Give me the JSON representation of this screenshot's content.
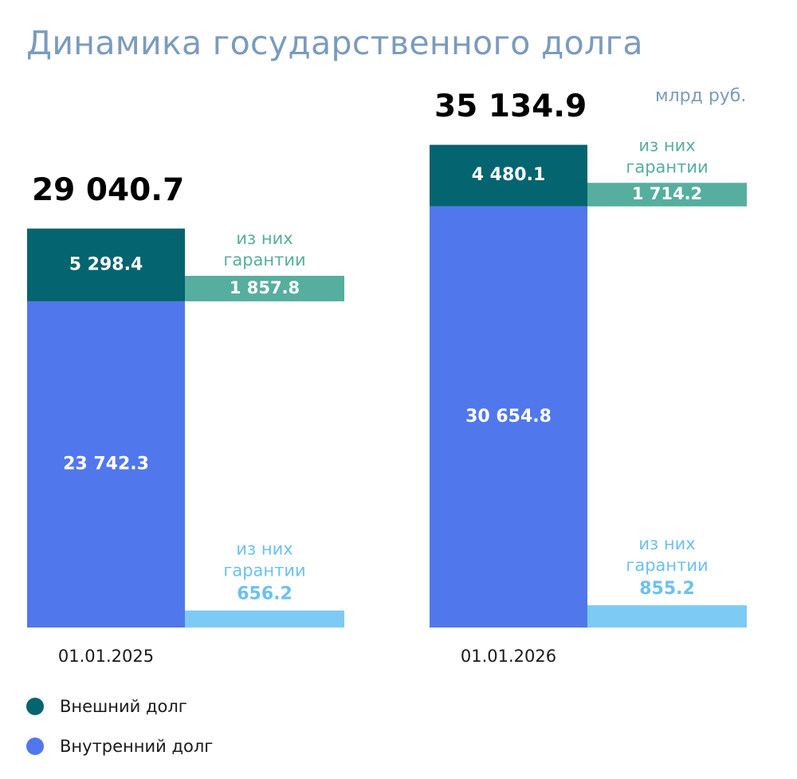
{
  "title": "Динамика государственного долга",
  "unit": "млрд руб.",
  "colors": {
    "external": "#04646f",
    "domestic": "#5177ec",
    "external_guarantee": "#56ae9e",
    "domestic_guarantee": "#7dcbf5",
    "external_guarantee_text": "#56ae9e",
    "domestic_guarantee_text": "#6cc1f0",
    "total_text": "#000000",
    "title": "#7b9bbe"
  },
  "legend": [
    {
      "label": "Внешний долг",
      "color": "#04646f"
    },
    {
      "label": "Внутренний долг",
      "color": "#5177ec"
    }
  ],
  "chart_data": {
    "type": "bar",
    "stacked": true,
    "categories": [
      "01.01.2025",
      "01.01.2026"
    ],
    "totals": [
      29040.7,
      35134.9
    ],
    "totals_labels": [
      "29 040.7",
      "35 134.9"
    ],
    "series": [
      {
        "name": "Внешний долг",
        "values": [
          5298.4,
          4480.1
        ],
        "labels": [
          "5 298.4",
          "4 480.1"
        ]
      },
      {
        "name": "Внутренний долг",
        "values": [
          23742.3,
          30654.8
        ],
        "labels": [
          "23 742.3",
          "30 654.8"
        ]
      }
    ],
    "guarantees": {
      "caption_line1": "из них",
      "caption_line2": "гарантии",
      "external": {
        "values": [
          1857.8,
          1714.2
        ],
        "labels": [
          "1 857.8",
          "1 714.2"
        ]
      },
      "domestic": {
        "values": [
          656.2,
          855.2
        ],
        "labels": [
          "656.2",
          "855.2"
        ]
      }
    }
  }
}
